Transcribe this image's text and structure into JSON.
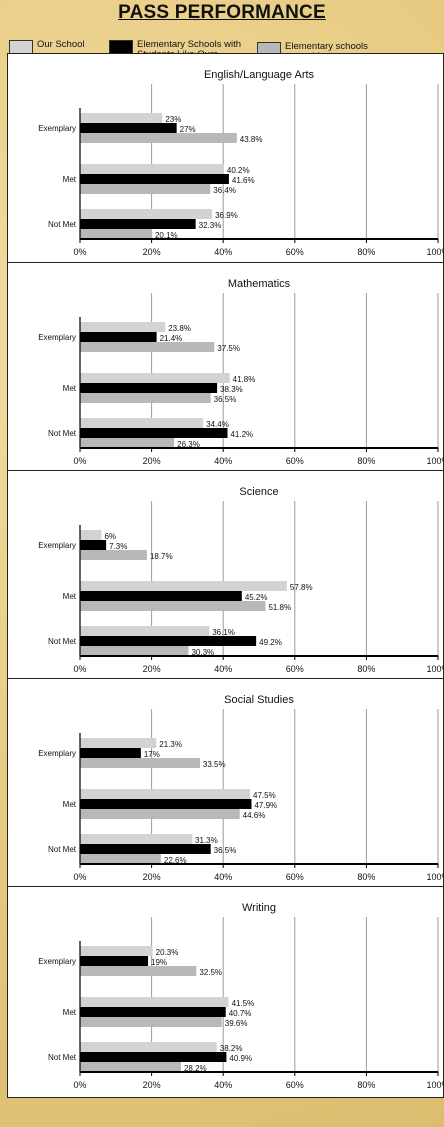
{
  "page": {
    "title": "PASS PERFORMANCE"
  },
  "legend": [
    {
      "label": "Our School",
      "color": "#d3d3d3"
    },
    {
      "label": "Elementary Schools with Students Like Ours",
      "color": "#000000"
    },
    {
      "label": "Elementary schools statewide",
      "color": "#b8b8b8"
    }
  ],
  "chart_data": [
    {
      "type": "bar",
      "orientation": "horizontal",
      "title": "English/Language Arts",
      "categories": [
        "Exemplary",
        "Met",
        "Not Met"
      ],
      "series": [
        {
          "name": "Our School",
          "values": [
            23,
            40.2,
            36.9
          ],
          "labels": [
            "23%",
            "40.2%",
            "36.9%"
          ]
        },
        {
          "name": "Elementary Schools with Students Like Ours",
          "values": [
            27,
            41.6,
            32.3
          ],
          "labels": [
            "27%",
            "41.6%",
            "32.3%"
          ]
        },
        {
          "name": "Elementary schools statewide",
          "values": [
            43.8,
            36.4,
            20.1
          ],
          "labels": [
            "43.8%",
            "36.4%",
            "20.1%"
          ]
        }
      ],
      "xlim": [
        0,
        100
      ],
      "ticks": [
        "0%",
        "20%",
        "40%",
        "60%",
        "80%",
        "100%"
      ],
      "grid": true
    },
    {
      "type": "bar",
      "orientation": "horizontal",
      "title": "Mathematics",
      "categories": [
        "Exemplary",
        "Met",
        "Not Met"
      ],
      "series": [
        {
          "name": "Our School",
          "values": [
            23.8,
            41.8,
            34.4
          ],
          "labels": [
            "23.8%",
            "41.8%",
            "34.4%"
          ]
        },
        {
          "name": "Elementary Schools with Students Like Ours",
          "values": [
            21.4,
            38.3,
            41.2
          ],
          "labels": [
            "21.4%",
            "38.3%",
            "41.2%"
          ]
        },
        {
          "name": "Elementary schools statewide",
          "values": [
            37.5,
            36.5,
            26.3
          ],
          "labels": [
            "37.5%",
            "36.5%",
            "26.3%"
          ]
        }
      ],
      "xlim": [
        0,
        100
      ],
      "ticks": [
        "0%",
        "20%",
        "40%",
        "60%",
        "80%",
        "100%"
      ],
      "grid": true
    },
    {
      "type": "bar",
      "orientation": "horizontal",
      "title": "Science",
      "categories": [
        "Exemplary",
        "Met",
        "Not Met"
      ],
      "series": [
        {
          "name": "Our School",
          "values": [
            6,
            57.8,
            36.1
          ],
          "labels": [
            "6%",
            "57.8%",
            "36.1%"
          ]
        },
        {
          "name": "Elementary Schools with Students Like Ours",
          "values": [
            7.3,
            45.2,
            49.2
          ],
          "labels": [
            "7.3%",
            "45.2%",
            "49.2%"
          ]
        },
        {
          "name": "Elementary schools statewide",
          "values": [
            18.7,
            51.8,
            30.3
          ],
          "labels": [
            "18.7%",
            "51.8%",
            "30.3%"
          ]
        }
      ],
      "xlim": [
        0,
        100
      ],
      "ticks": [
        "0%",
        "20%",
        "40%",
        "60%",
        "80%",
        "100%"
      ],
      "grid": true
    },
    {
      "type": "bar",
      "orientation": "horizontal",
      "title": "Social Studies",
      "categories": [
        "Exemplary",
        "Met",
        "Not Met"
      ],
      "series": [
        {
          "name": "Our School",
          "values": [
            21.3,
            47.5,
            31.3
          ],
          "labels": [
            "21.3%",
            "47.5%",
            "31.3%"
          ]
        },
        {
          "name": "Elementary Schools with Students Like Ours",
          "values": [
            17,
            47.9,
            36.5
          ],
          "labels": [
            "17%",
            "47.9%",
            "36.5%"
          ]
        },
        {
          "name": "Elementary schools statewide",
          "values": [
            33.5,
            44.6,
            22.6
          ],
          "labels": [
            "33.5%",
            "44.6%",
            "22.6%"
          ]
        }
      ],
      "xlim": [
        0,
        100
      ],
      "ticks": [
        "0%",
        "20%",
        "40%",
        "60%",
        "80%",
        "100%"
      ],
      "grid": true
    },
    {
      "type": "bar",
      "orientation": "horizontal",
      "title": "Writing",
      "categories": [
        "Exemplary",
        "Met",
        "Not Met"
      ],
      "series": [
        {
          "name": "Our School",
          "values": [
            20.3,
            41.5,
            38.2
          ],
          "labels": [
            "20.3%",
            "41.5%",
            "38.2%"
          ]
        },
        {
          "name": "Elementary Schools with Students Like Ours",
          "values": [
            19,
            40.7,
            40.9
          ],
          "labels": [
            "19%",
            "40.7%",
            "40.9%"
          ]
        },
        {
          "name": "Elementary schools statewide",
          "values": [
            32.5,
            39.6,
            28.2
          ],
          "labels": [
            "32.5%",
            "39.6%",
            "28.2%"
          ]
        }
      ],
      "xlim": [
        0,
        100
      ],
      "ticks": [
        "0%",
        "20%",
        "40%",
        "60%",
        "80%",
        "100%"
      ],
      "grid": true
    }
  ]
}
